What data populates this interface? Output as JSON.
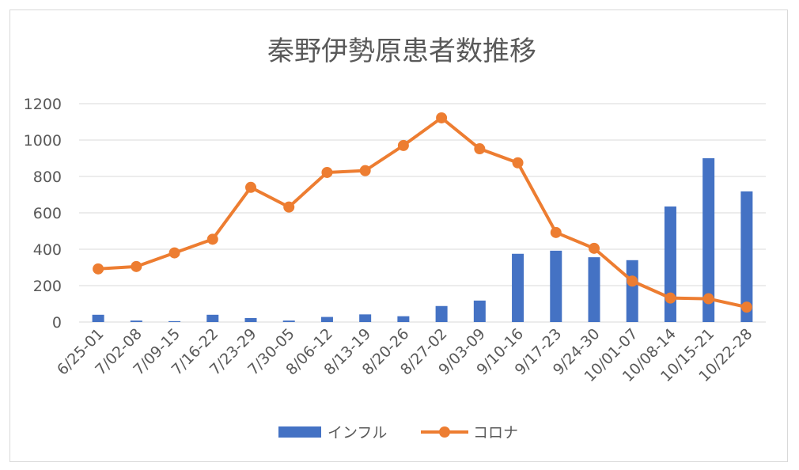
{
  "chart_data": {
    "type": "bar+line",
    "title": "秦野伊勢原患者数推移",
    "categories": [
      "6/25-01",
      "7/02-08",
      "7/09-15",
      "7/16-22",
      "7/23-29",
      "7/30-05",
      "8/06-12",
      "8/13-19",
      "8/20-26",
      "8/27-02",
      "9/03-09",
      "9/10-16",
      "9/17-23",
      "9/24-30",
      "10/01-07",
      "10/08-14",
      "10/15-21",
      "10/22-28"
    ],
    "series": [
      {
        "name": "インフル",
        "type": "bar",
        "color": "#4472c4",
        "values": [
          40,
          8,
          5,
          40,
          22,
          8,
          28,
          42,
          32,
          88,
          118,
          375,
          392,
          356,
          340,
          635,
          900,
          718
        ]
      },
      {
        "name": "コロナ",
        "type": "line",
        "color": "#ed7d31",
        "values": [
          292,
          305,
          380,
          455,
          740,
          632,
          822,
          832,
          970,
          1122,
          952,
          875,
          492,
          405,
          225,
          132,
          128,
          82
        ]
      }
    ],
    "y_ticks": [
      "0",
      "200",
      "400",
      "600",
      "800",
      "1000",
      "1200"
    ],
    "ylim": [
      0,
      1200
    ],
    "grid": true,
    "legend_position": "bottom"
  }
}
